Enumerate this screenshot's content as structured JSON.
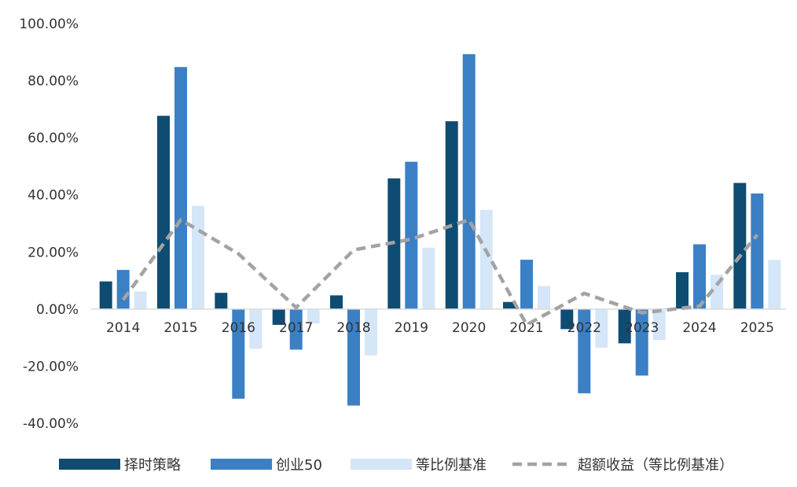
{
  "chart_data": {
    "type": "bar",
    "categories": [
      "2014",
      "2015",
      "2016",
      "2017",
      "2018",
      "2019",
      "2020",
      "2021",
      "2022",
      "2023",
      "2024",
      "2025"
    ],
    "series": [
      {
        "name": "择时策略",
        "kind": "bar",
        "color": "#0f4c73",
        "values": [
          9.7,
          67.7,
          5.7,
          -5.5,
          4.8,
          45.8,
          65.8,
          2.5,
          -7.0,
          -12.0,
          12.9,
          44.2
        ]
      },
      {
        "name": "创业50",
        "kind": "bar",
        "color": "#3b80c4",
        "values": [
          13.7,
          84.8,
          -31.4,
          -14.2,
          -33.8,
          51.6,
          89.3,
          17.3,
          -29.5,
          -23.3,
          22.7,
          40.5
        ]
      },
      {
        "name": "等比例基准",
        "kind": "bar",
        "color": "#d4e6f7",
        "values": [
          6.2,
          36.2,
          -13.9,
          -5.0,
          -16.2,
          21.5,
          34.7,
          8.1,
          -13.5,
          -10.8,
          12.0,
          17.2
        ]
      },
      {
        "name": "超额收益（等比例基准）",
        "kind": "line",
        "style": "dashed",
        "color": "#a3a3a3",
        "values": [
          3.2,
          31.3,
          19.4,
          0.5,
          20.7,
          24.5,
          31.3,
          -5.5,
          5.5,
          -1.3,
          1.0,
          26.0
        ]
      }
    ],
    "yticks": [
      "100.00%",
      "80.00%",
      "60.00%",
      "40.00%",
      "20.00%",
      "0.00%",
      "-20.00%",
      "-40.00%"
    ],
    "ylim": [
      -40,
      100
    ],
    "legend_position": "bottom",
    "grid": false
  }
}
